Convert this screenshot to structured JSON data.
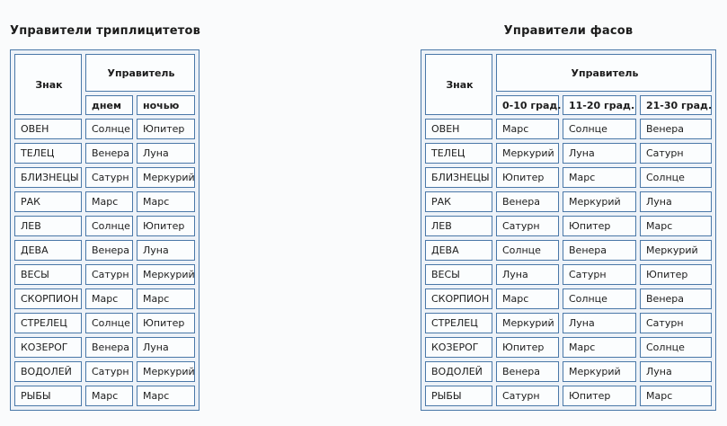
{
  "colors": {
    "page-bg": "#fafbfc",
    "table-bg": "#edf2f8",
    "cell-bg": "#fbfdfe",
    "border": "#4a78a8",
    "text": "#1c1c1c"
  },
  "tables": [
    {
      "title": "Управители триплицитетов",
      "sign_header": "Знак",
      "ruler_header": "Управитель",
      "sub_headers": [
        "днем",
        "ночью"
      ],
      "rows": [
        {
          "sign": "ОВЕН",
          "values": [
            "Солнце",
            "Юпитер"
          ]
        },
        {
          "sign": "ТЕЛЕЦ",
          "values": [
            "Венера",
            "Луна"
          ]
        },
        {
          "sign": "БЛИЗНЕЦЫ",
          "values": [
            "Сатурн",
            "Меркурий"
          ]
        },
        {
          "sign": "РАК",
          "values": [
            "Марс",
            "Марс"
          ]
        },
        {
          "sign": "ЛЕВ",
          "values": [
            "Солнце",
            "Юпитер"
          ]
        },
        {
          "sign": "ДЕВА",
          "values": [
            "Венера",
            "Луна"
          ]
        },
        {
          "sign": "ВЕСЫ",
          "values": [
            "Сатурн",
            "Меркурий"
          ]
        },
        {
          "sign": "СКОРПИОН",
          "values": [
            "Марс",
            "Марс"
          ]
        },
        {
          "sign": "СТРЕЛЕЦ",
          "values": [
            "Солнце",
            "Юпитер"
          ]
        },
        {
          "sign": "КОЗЕРОГ",
          "values": [
            "Венера",
            "Луна"
          ]
        },
        {
          "sign": "ВОДОЛЕЙ",
          "values": [
            "Сатурн",
            "Меркурий"
          ]
        },
        {
          "sign": "РЫБЫ",
          "values": [
            "Марс",
            "Марс"
          ]
        }
      ]
    },
    {
      "title": "Управители фасов",
      "sign_header": "Знак",
      "ruler_header": "Управитель",
      "sub_headers": [
        "0-10 град.",
        "11-20 град.",
        "21-30 град."
      ],
      "rows": [
        {
          "sign": "ОВЕН",
          "values": [
            "Марс",
            "Солнце",
            "Венера"
          ]
        },
        {
          "sign": "ТЕЛЕЦ",
          "values": [
            "Меркурий",
            "Луна",
            "Сатурн"
          ]
        },
        {
          "sign": "БЛИЗНЕЦЫ",
          "values": [
            "Юпитер",
            "Марс",
            "Солнце"
          ]
        },
        {
          "sign": "РАК",
          "values": [
            "Венера",
            "Меркурий",
            "Луна"
          ]
        },
        {
          "sign": "ЛЕВ",
          "values": [
            "Сатурн",
            "Юпитер",
            "Марс"
          ]
        },
        {
          "sign": "ДЕВА",
          "values": [
            "Солнце",
            "Венера",
            "Меркурий"
          ]
        },
        {
          "sign": "ВЕСЫ",
          "values": [
            "Луна",
            "Сатурн",
            "Юпитер"
          ]
        },
        {
          "sign": "СКОРПИОН",
          "values": [
            "Марс",
            "Солнце",
            "Венера"
          ]
        },
        {
          "sign": "СТРЕЛЕЦ",
          "values": [
            "Меркурий",
            "Луна",
            "Сатурн"
          ]
        },
        {
          "sign": "КОЗЕРОГ",
          "values": [
            "Юпитер",
            "Марс",
            "Солнце"
          ]
        },
        {
          "sign": "ВОДОЛЕЙ",
          "values": [
            "Венера",
            "Меркурий",
            "Луна"
          ]
        },
        {
          "sign": "РЫБЫ",
          "values": [
            "Сатурн",
            "Юпитер",
            "Марс"
          ]
        }
      ]
    }
  ]
}
